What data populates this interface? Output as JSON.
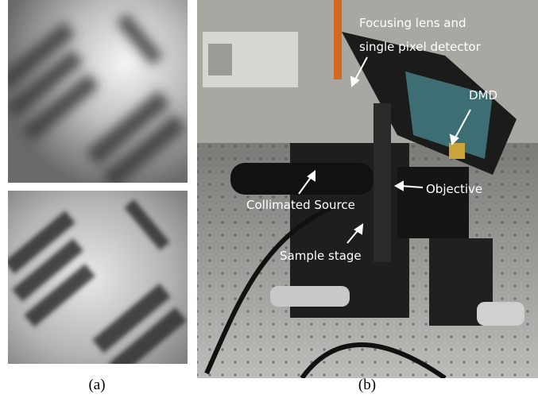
{
  "figure": {
    "panel_a": {
      "caption": "(a)"
    },
    "panel_b": {
      "caption": "(b)",
      "annotations": {
        "focusing": [
          "Focusing lens and",
          "single pixel detector"
        ],
        "dmd": "DMD",
        "objective": "Objective",
        "source": "Collimated Source",
        "stage": "Sample stage"
      }
    }
  }
}
